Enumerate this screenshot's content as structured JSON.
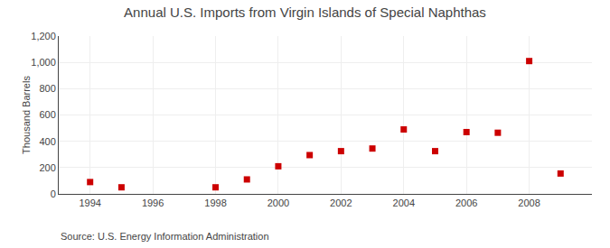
{
  "chart_data": {
    "type": "scatter",
    "title": "Annual U.S. Imports from Virgin Islands of Special Naphthas",
    "ylabel": "Thousand Barrels",
    "annotations": [
      "Source: U.S. Energy Information Administration"
    ],
    "x": [
      1994,
      1995,
      1998,
      1999,
      2000,
      2001,
      2002,
      2003,
      2004,
      2005,
      2006,
      2007,
      2008,
      2009
    ],
    "values": [
      90,
      50,
      50,
      110,
      210,
      295,
      325,
      345,
      490,
      325,
      470,
      465,
      1010,
      155
    ],
    "color": "#cc0000",
    "marker": "square",
    "xlim": [
      1993.0,
      2010.0
    ],
    "ylim": [
      0,
      1200
    ],
    "xticks": [
      1994,
      1996,
      1998,
      2000,
      2002,
      2004,
      2006,
      2008
    ],
    "yticks": [
      0,
      200,
      400,
      600,
      800,
      {
        "value": 1000,
        "label": "1,000"
      },
      {
        "value": 1200,
        "label": "1,200"
      }
    ],
    "grid": true
  }
}
